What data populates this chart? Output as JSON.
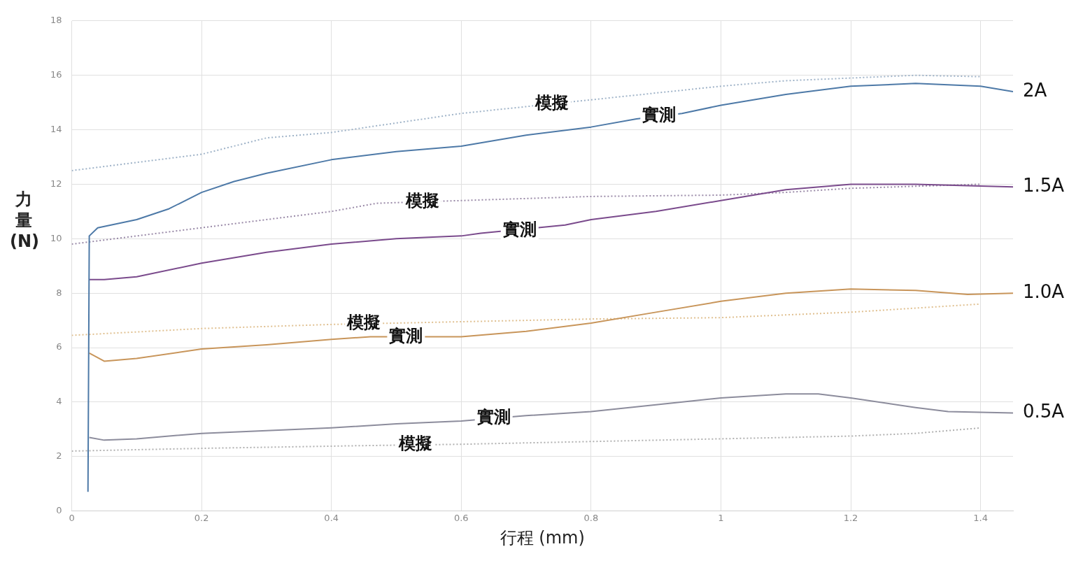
{
  "chart_data": {
    "type": "line",
    "xlabel": "行程 (mm)",
    "ylabel": "力量 (N)",
    "xlim": [
      0,
      1.45
    ],
    "ylim": [
      0,
      18
    ],
    "xticks": [
      0,
      0.2,
      0.4,
      0.6,
      0.8,
      1,
      1.2,
      1.4
    ],
    "yticks": [
      0,
      2,
      4,
      6,
      8,
      10,
      12,
      14,
      16,
      18
    ],
    "grid": true,
    "legend": false,
    "marker": "none",
    "series": [
      {
        "color": "#4d79a7",
        "line_style": "solid",
        "x": [
          0.025,
          0.027,
          0.04,
          0.1,
          0.15,
          0.2,
          0.25,
          0.3,
          0.4,
          0.5,
          0.6,
          0.7,
          0.8,
          0.87,
          0.94,
          1.0,
          1.1,
          1.2,
          1.3,
          1.4,
          1.45
        ],
        "values": [
          0.7,
          10.1,
          10.4,
          10.7,
          11.1,
          11.7,
          12.1,
          12.4,
          12.9,
          13.2,
          13.4,
          13.8,
          14.1,
          14.4,
          14.6,
          14.9,
          15.3,
          15.6,
          15.7,
          15.6,
          15.4
        ]
      },
      {
        "color": "#9fb3c8",
        "line_style": "dotted",
        "x": [
          0,
          0.2,
          0.3,
          0.4,
          0.6,
          0.68,
          0.8,
          1.0,
          1.1,
          1.3,
          1.4
        ],
        "values": [
          12.5,
          13.1,
          13.7,
          13.9,
          14.6,
          14.8,
          15.1,
          15.6,
          15.8,
          16.0,
          15.95
        ]
      },
      {
        "color": "#7a4a8c",
        "line_style": "solid",
        "x": [
          0.027,
          0.05,
          0.1,
          0.2,
          0.3,
          0.4,
          0.5,
          0.6,
          0.63,
          0.76,
          0.8,
          0.9,
          1.0,
          1.1,
          1.2,
          1.3,
          1.45
        ],
        "values": [
          8.5,
          8.5,
          8.6,
          9.1,
          9.5,
          9.8,
          10.0,
          10.1,
          10.2,
          10.5,
          10.7,
          11.0,
          11.4,
          11.8,
          12.0,
          12.0,
          11.9
        ]
      },
      {
        "color": "#9a8aa8",
        "line_style": "dotted",
        "x": [
          0,
          0.2,
          0.4,
          0.47,
          0.6,
          0.8,
          1.0,
          1.1,
          1.2,
          1.4
        ],
        "values": [
          9.8,
          10.4,
          11.0,
          11.3,
          11.4,
          11.55,
          11.6,
          11.7,
          11.85,
          12.0
        ]
      },
      {
        "color": "#c8955a",
        "line_style": "solid",
        "x": [
          0.027,
          0.05,
          0.1,
          0.2,
          0.3,
          0.4,
          0.46,
          0.55,
          0.6,
          0.7,
          0.8,
          0.9,
          1.0,
          1.1,
          1.2,
          1.3,
          1.38,
          1.45
        ],
        "values": [
          5.8,
          5.5,
          5.6,
          5.95,
          6.1,
          6.3,
          6.4,
          6.4,
          6.4,
          6.6,
          6.9,
          7.3,
          7.7,
          8.0,
          8.15,
          8.1,
          7.95,
          8.0
        ]
      },
      {
        "color": "#e0c090",
        "line_style": "dotted",
        "x": [
          0,
          0.2,
          0.4,
          0.5,
          0.8,
          1.0,
          1.2,
          1.4
        ],
        "values": [
          6.45,
          6.7,
          6.85,
          6.9,
          7.05,
          7.1,
          7.3,
          7.6
        ]
      },
      {
        "color": "#8c8c9c",
        "line_style": "solid",
        "x": [
          0.027,
          0.05,
          0.1,
          0.2,
          0.4,
          0.5,
          0.6,
          0.7,
          0.8,
          0.9,
          1.0,
          1.1,
          1.15,
          1.2,
          1.3,
          1.35,
          1.45
        ],
        "values": [
          2.7,
          2.6,
          2.65,
          2.85,
          3.05,
          3.2,
          3.3,
          3.5,
          3.65,
          3.9,
          4.15,
          4.3,
          4.3,
          4.15,
          3.8,
          3.65,
          3.6
        ]
      },
      {
        "color": "#b0b0b0",
        "line_style": "dotted",
        "x": [
          0,
          0.2,
          0.45,
          0.6,
          0.8,
          1.0,
          1.2,
          1.3,
          1.4
        ],
        "values": [
          2.2,
          2.3,
          2.4,
          2.45,
          2.55,
          2.65,
          2.75,
          2.85,
          3.05
        ]
      }
    ],
    "annotations": [
      {
        "text": "模擬",
        "x": 0.74,
        "y": 14.95
      },
      {
        "text": "實測",
        "x": 0.905,
        "y": 14.5
      },
      {
        "text": "模擬",
        "x": 0.54,
        "y": 11.35
      },
      {
        "text": "實測",
        "x": 0.69,
        "y": 10.3
      },
      {
        "text": "模擬",
        "x": 0.45,
        "y": 6.88
      },
      {
        "text": "實測",
        "x": 0.515,
        "y": 6.4
      },
      {
        "text": "實測",
        "x": 0.65,
        "y": 3.4
      },
      {
        "text": "模擬",
        "x": 0.53,
        "y": 2.43
      },
      {
        "text": "2A",
        "x": 1.45,
        "y": 15.4
      },
      {
        "text": "1.5A",
        "x": 1.45,
        "y": 11.9
      },
      {
        "text": "1.0A",
        "x": 1.45,
        "y": 8.0
      },
      {
        "text": "0.5A",
        "x": 1.45,
        "y": 3.6
      }
    ]
  }
}
